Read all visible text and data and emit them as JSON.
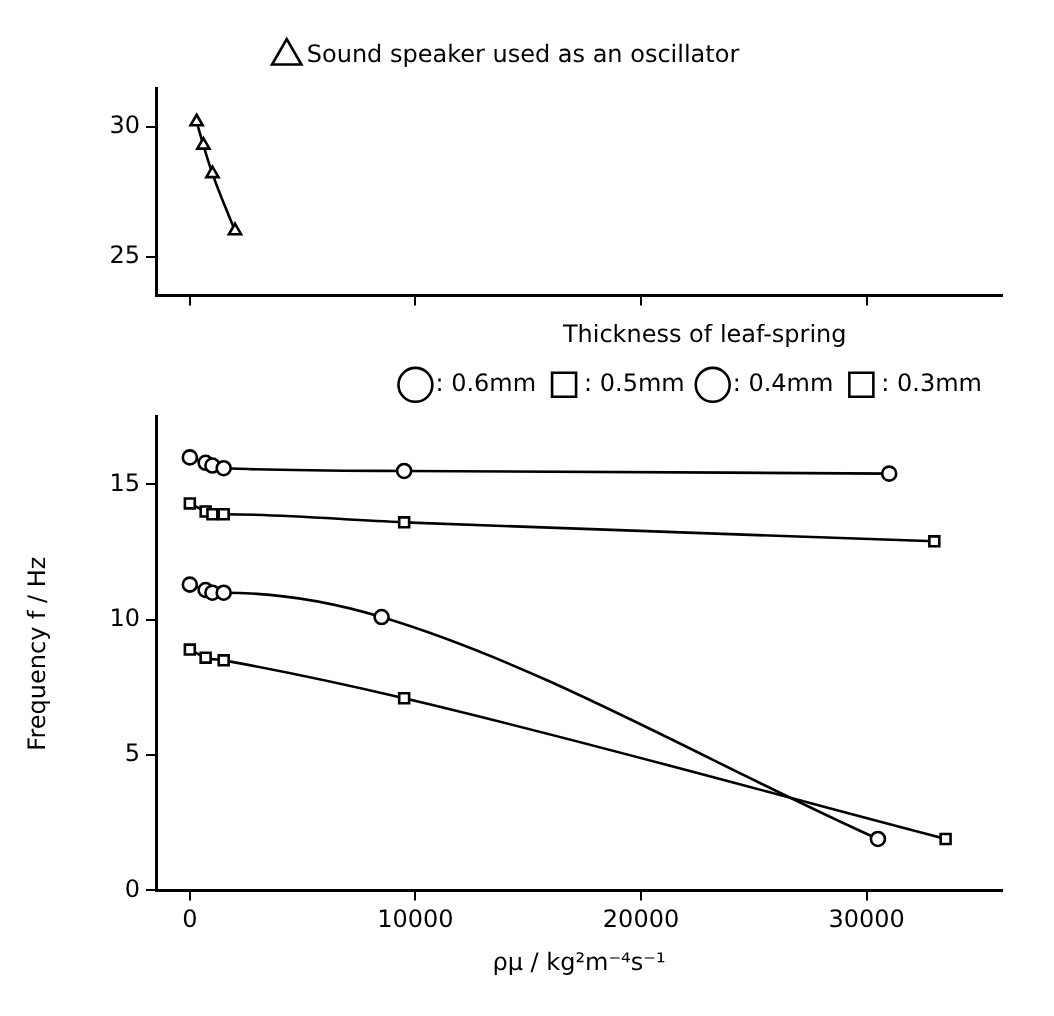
{
  "chart_data": [
    {
      "type": "line",
      "xlim": [
        -1500,
        36000
      ],
      "xticks": [
        0,
        10000,
        20000,
        30000
      ],
      "ylim": [
        23.5,
        31.5
      ],
      "yticks": [
        25,
        30
      ],
      "tick_labels": "y",
      "grid": false,
      "legend": "top",
      "line_style": "solid",
      "series": [
        {
          "name": "Sound speaker used as an oscillator",
          "color": "#000000",
          "marker": "triangle",
          "x": [
            300,
            600,
            1000,
            2000
          ],
          "values": [
            30.2,
            29.3,
            28.2,
            26.0
          ]
        }
      ]
    },
    {
      "type": "line",
      "xlabel": "ρμ / kg²m⁻⁴s⁻¹",
      "ylabel": "Frequency f / Hz",
      "xlim": [
        -1500,
        36000
      ],
      "xticks": [
        0,
        10000,
        20000,
        30000
      ],
      "ylim": [
        0,
        17.5
      ],
      "yticks": [
        0,
        5,
        10,
        15
      ],
      "grid": false,
      "legend": "top right",
      "legend_title": "Thickness of leaf-spring",
      "line_style": "solid",
      "series": [
        {
          "name": ": 0.6mm",
          "color": "#000000",
          "marker": "circle",
          "x": [
            0,
            700,
            1000,
            1500,
            9500,
            31000
          ],
          "values": [
            16.0,
            15.8,
            15.7,
            15.6,
            15.5,
            15.4
          ]
        },
        {
          "name": ": 0.5mm",
          "color": "#000000",
          "marker": "square",
          "x": [
            0,
            700,
            1000,
            1500,
            9500,
            33000
          ],
          "values": [
            14.3,
            14.0,
            13.9,
            13.9,
            13.6,
            12.9
          ]
        },
        {
          "name": ": 0.4mm",
          "color": "#000000",
          "marker": "circle",
          "x": [
            0,
            700,
            1000,
            1500,
            8500,
            30500
          ],
          "values": [
            11.3,
            11.1,
            11.0,
            11.0,
            10.1,
            1.9
          ]
        },
        {
          "name": ": 0.3mm",
          "color": "#000000",
          "marker": "square",
          "x": [
            0,
            700,
            1500,
            9500,
            33500
          ],
          "values": [
            8.9,
            8.6,
            8.5,
            7.1,
            1.9
          ]
        }
      ]
    }
  ]
}
